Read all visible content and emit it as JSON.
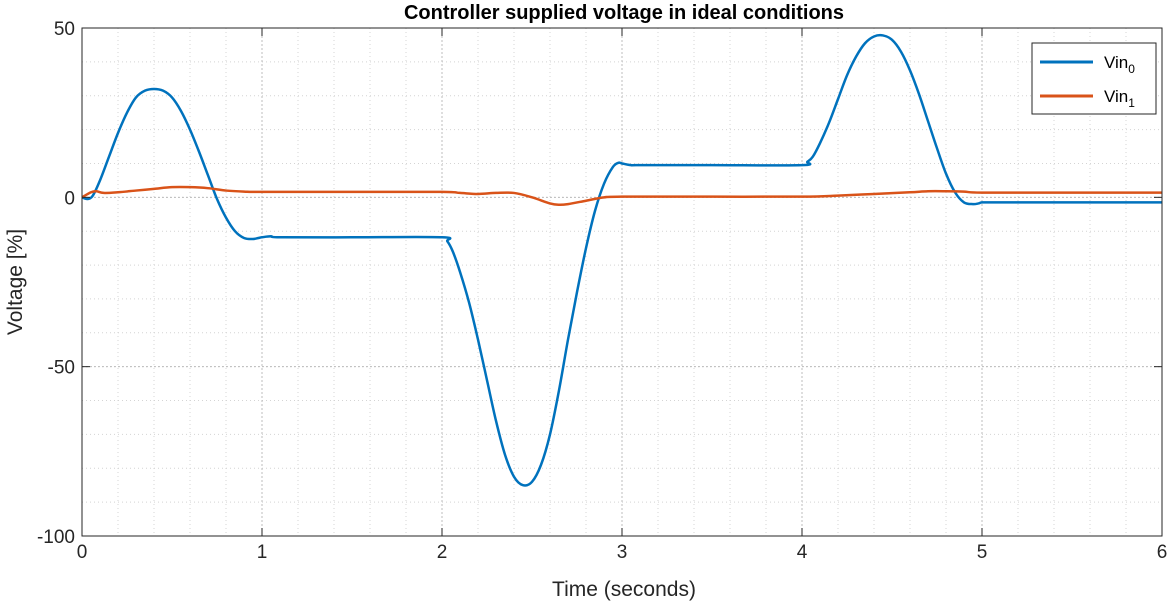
{
  "chart_data": {
    "type": "line",
    "title": "Controller supplied voltage in ideal conditions",
    "xlabel": "Time (seconds)",
    "ylabel": "Voltage [%]",
    "xlim": [
      0,
      6
    ],
    "ylim": [
      -100,
      50
    ],
    "xticks": [
      0,
      1,
      2,
      3,
      4,
      5,
      6
    ],
    "xtick_labels": [
      "0",
      "1",
      "2",
      "3",
      "4",
      "5",
      "6"
    ],
    "yticks": [
      -100,
      -50,
      0,
      50
    ],
    "ytick_labels": [
      "-100",
      "-50",
      "0",
      "50"
    ],
    "grid": true,
    "minor_grid": true,
    "legend_position": "top-right",
    "series": [
      {
        "name": "Vin",
        "subscript": "0",
        "color": "#0072BD",
        "x": [
          0,
          0.03,
          0.06,
          0.1,
          0.15,
          0.2,
          0.25,
          0.3,
          0.35,
          0.4,
          0.45,
          0.5,
          0.55,
          0.6,
          0.65,
          0.7,
          0.75,
          0.8,
          0.85,
          0.9,
          0.95,
          0.98,
          1.0,
          1.05,
          1.1,
          1.5,
          2.0,
          2.03,
          2.06,
          2.1,
          2.15,
          2.2,
          2.25,
          2.3,
          2.35,
          2.4,
          2.45,
          2.5,
          2.55,
          2.6,
          2.65,
          2.7,
          2.75,
          2.8,
          2.85,
          2.9,
          2.95,
          2.98,
          3.0,
          3.05,
          3.1,
          3.5,
          4.0,
          4.03,
          4.06,
          4.1,
          4.15,
          4.2,
          4.25,
          4.3,
          4.35,
          4.4,
          4.45,
          4.5,
          4.55,
          4.6,
          4.65,
          4.7,
          4.75,
          4.8,
          4.85,
          4.9,
          4.95,
          4.98,
          5.0,
          5.05,
          5.1,
          5.5,
          6.0
        ],
        "y": [
          0,
          -0.5,
          0.5,
          5,
          12,
          19,
          25,
          29.5,
          31.5,
          32,
          31.5,
          29.5,
          25.5,
          20,
          13.5,
          6.5,
          -0.5,
          -6,
          -10,
          -12,
          -12.3,
          -12,
          -11.8,
          -11.5,
          -11.8,
          -11.8,
          -11.8,
          -13,
          -16,
          -22,
          -31,
          -42,
          -54,
          -66,
          -76,
          -82.5,
          -85,
          -84,
          -79,
          -70,
          -57,
          -42,
          -28,
          -15,
          -4,
          4,
          9,
          10.2,
          10,
          9.5,
          9.5,
          9.5,
          9.5,
          10.5,
          12,
          16,
          22,
          29,
          36,
          41.5,
          45.5,
          47.5,
          47.8,
          46.5,
          43,
          37.5,
          30.5,
          22.5,
          14.5,
          7,
          1.5,
          -1.5,
          -2,
          -1.8,
          -1.5,
          -1.5,
          -1.5,
          -1.5,
          -1.5
        ]
      },
      {
        "name": "Vin",
        "subscript": "1",
        "color": "#D95319",
        "x": [
          0,
          0.05,
          0.08,
          0.12,
          0.2,
          0.3,
          0.4,
          0.5,
          0.6,
          0.7,
          0.8,
          0.9,
          1.0,
          1.5,
          2.0,
          2.1,
          2.2,
          2.3,
          2.4,
          2.5,
          2.6,
          2.65,
          2.7,
          2.8,
          2.9,
          3.0,
          3.5,
          4.0,
          4.2,
          4.4,
          4.6,
          4.7,
          4.8,
          4.9,
          5.0,
          5.5,
          6.0
        ],
        "y": [
          0,
          1.5,
          1.8,
          1.3,
          1.5,
          2,
          2.5,
          3,
          3,
          2.7,
          2,
          1.7,
          1.6,
          1.6,
          1.6,
          1.3,
          1,
          1.3,
          1.3,
          0,
          -1.8,
          -2.2,
          -2,
          -1,
          0,
          0.2,
          0.2,
          0.2,
          0.5,
          1,
          1.5,
          1.8,
          1.8,
          1.7,
          1.4,
          1.4,
          1.4
        ]
      }
    ]
  }
}
